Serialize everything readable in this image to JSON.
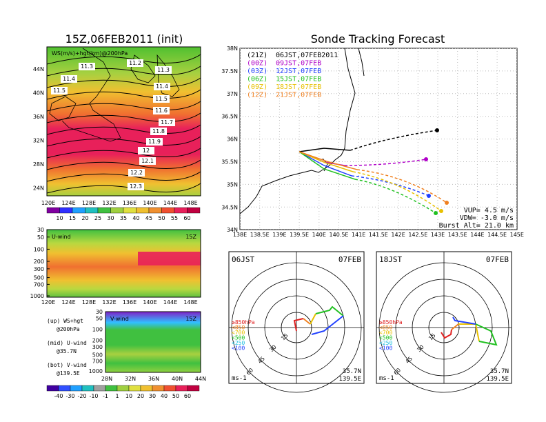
{
  "titles": {
    "left": "15Z,06FEB2011 (init)",
    "right": "Sonde Tracking Forecast"
  },
  "panel_top": {
    "label": "WS(m/s)+hgt(km)@200hPa",
    "x_ticks": [
      "120E",
      "124E",
      "128E",
      "132E",
      "136E",
      "140E",
      "144E",
      "148E"
    ],
    "y_ticks": [
      "44N",
      "40N",
      "36N",
      "32N",
      "28N",
      "24N"
    ],
    "contours": [
      "11.2",
      "11.3",
      "11.3",
      "11.4",
      "11.4",
      "11.5",
      "11.5",
      "11.6",
      "11.7",
      "11.8",
      "11.9",
      "12",
      "12.1",
      "12.2",
      "12.3"
    ],
    "colorbar_ticks": [
      "10",
      "15",
      "20",
      "25",
      "30",
      "35",
      "40",
      "45",
      "50",
      "55",
      "60"
    ]
  },
  "panel_u": {
    "label": "U-wind",
    "time": "15Z",
    "y_ticks": [
      "30",
      "50",
      "100",
      "200",
      "300",
      "500",
      "700",
      "1000"
    ],
    "x_ticks": [
      "120E",
      "124E",
      "128E",
      "132E",
      "136E",
      "140E",
      "144E",
      "148E"
    ]
  },
  "panel_v": {
    "label": "V-wind",
    "time": "15Z",
    "y_ticks": [
      "30",
      "50",
      "100",
      "200",
      "300",
      "500",
      "700",
      "1000"
    ],
    "x_ticks": [
      "28N",
      "32N",
      "36N",
      "40N",
      "44N"
    ]
  },
  "legend_notes": [
    {
      "line1": "(up) WS+hgt",
      "line2": "@200hPa"
    },
    {
      "line1": "(mid) U-wind",
      "line2": "@35.7N"
    },
    {
      "line1": "(bot) V-wind",
      "line2": "@139.5E"
    }
  ],
  "colorbar_bottom_ticks": [
    "-40",
    "-30",
    "-20",
    "-10",
    "-1",
    "1",
    "10",
    "20",
    "30",
    "40",
    "50",
    "60"
  ],
  "track_map": {
    "y_ticks": [
      "38N",
      "37.5N",
      "37N",
      "36.5N",
      "36N",
      "35.5N",
      "35N",
      "34.5N",
      "34N"
    ],
    "x_ticks": [
      "138E",
      "138.5E",
      "139E",
      "139.5E",
      "140E",
      "140.5E",
      "141E",
      "141.5E",
      "142E",
      "142.5E",
      "143E",
      "143.5E",
      "144E",
      "144.5E",
      "145E"
    ],
    "legend": [
      {
        "code": "(21Z)",
        "time": "06JST,07FEB2011",
        "color": "#000000"
      },
      {
        "code": "(00Z)",
        "time": "09JST,07FEB",
        "color": "#b000c8"
      },
      {
        "code": "(03Z)",
        "time": "12JST,07FEB",
        "color": "#2040ff"
      },
      {
        "code": "(06Z)",
        "time": "15JST,07FEB",
        "color": "#20c020"
      },
      {
        "code": "(09Z)",
        "time": "18JST,07FEB",
        "color": "#e8c000"
      },
      {
        "code": "(12Z)",
        "time": "21JST,07FEB",
        "color": "#f08020"
      }
    ],
    "params": [
      "VUP= 4.5 m/s",
      "VDW= -3.0 m/s",
      "Burst Alt= 21.0 km"
    ]
  },
  "hodographs": [
    {
      "time": "06JST",
      "date": "07FEB",
      "unit": "ms-1",
      "lat": "35.7N",
      "lon": "139.5E",
      "rings": [
        "15",
        "30",
        "45",
        "60"
      ]
    },
    {
      "time": "18JST",
      "date": "07FEB",
      "unit": "ms-1",
      "lat": "35.7N",
      "lon": "139.5E",
      "rings": [
        "15",
        "30",
        "45",
        "60"
      ]
    }
  ],
  "hodo_legend": [
    {
      "text": "≥850hPa",
      "color": "#e02020"
    },
    {
      "text": "<850",
      "color": "#f08020"
    },
    {
      "text": "<700",
      "color": "#e8c000"
    },
    {
      "text": "<500",
      "color": "#20c020"
    },
    {
      "text": "<250",
      "color": "#20c0e0"
    },
    {
      "text": "<100",
      "color": "#2040ff"
    }
  ],
  "colors": {
    "purple": "#a000c8",
    "blue": "#3050ff",
    "cyan": "#30c0ff",
    "green": "#40c040",
    "yellow": "#d8e040",
    "orange": "#f0a030",
    "red": "#f05030",
    "magenta": "#e8205a"
  }
}
